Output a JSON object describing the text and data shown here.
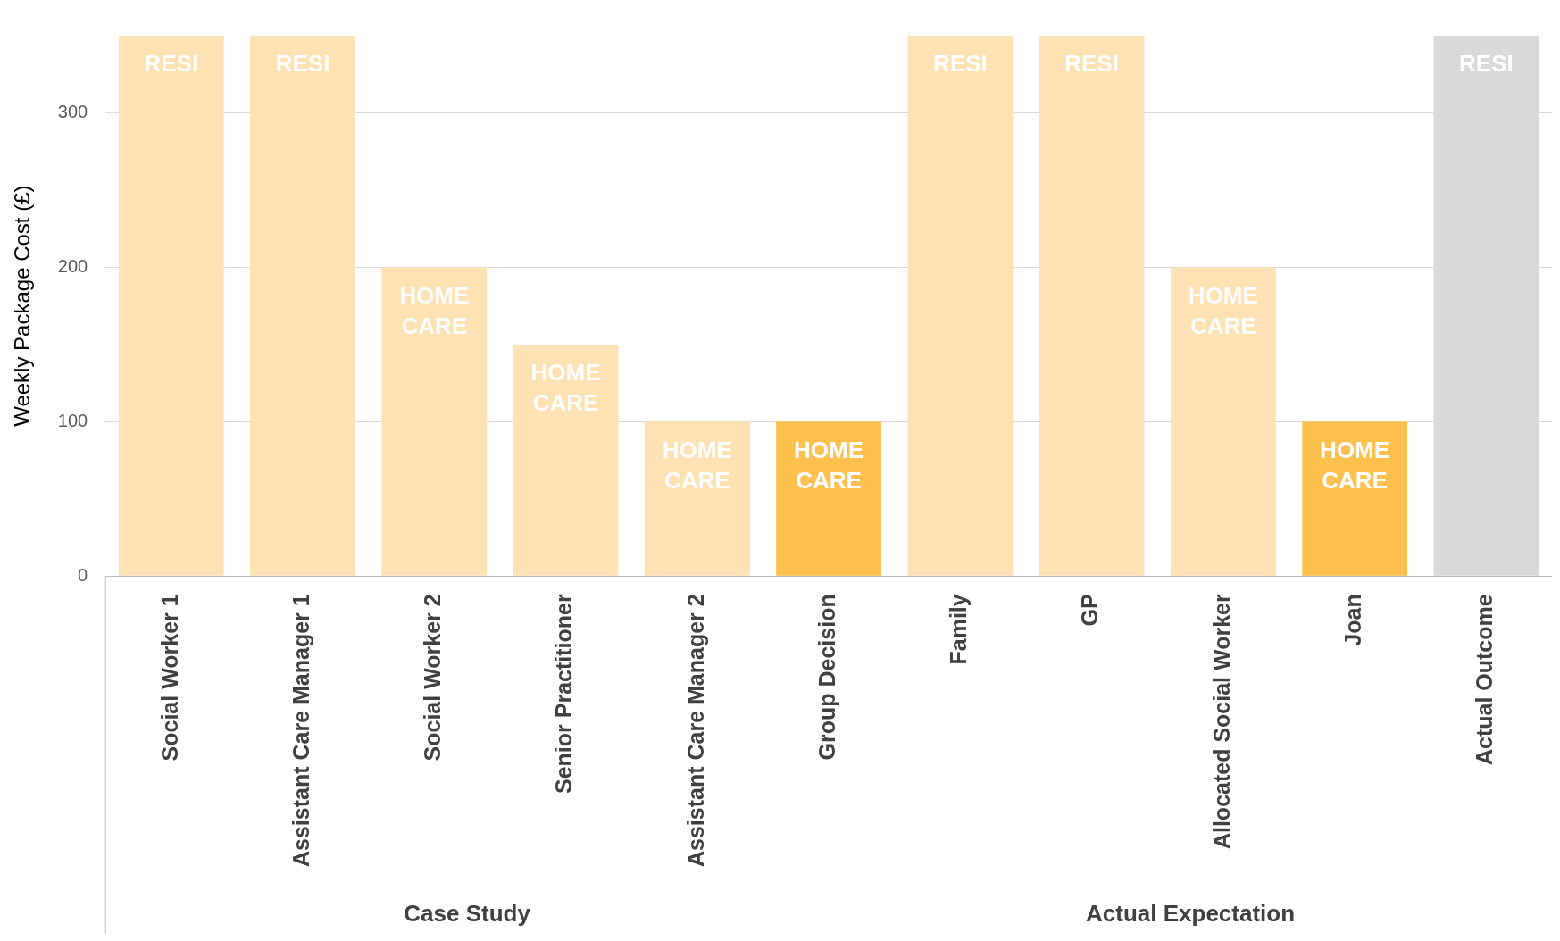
{
  "chart_data": {
    "type": "bar",
    "ylabel": "Weekly Package Cost (£)",
    "categories": [
      "Social Worker 1",
      "Assistant Care Manager 1",
      "Social Worker 2",
      "Senior Practitioner",
      "Assistant Care Manager 2",
      "Group Decision",
      "Family",
      "GP",
      "Allocated Social Worker",
      "Joan",
      "Actual Outcome"
    ],
    "values": [
      350,
      350,
      200,
      150,
      100,
      100,
      350,
      350,
      200,
      100,
      350
    ],
    "colors": [
      "#fee2b3",
      "#fee2b3",
      "#fee2b3",
      "#fee2b3",
      "#fee2b3",
      "#ffc04d",
      "#fee2b3",
      "#fee2b3",
      "#fee2b3",
      "#ffc04d",
      "#d9d9d9"
    ],
    "value_labels": [
      "RESI",
      "RESI",
      "HOME CARE",
      "HOME CARE",
      "HOME CARE",
      "HOME CARE",
      "RESI",
      "RESI",
      "HOME CARE",
      "HOME CARE",
      "RESI"
    ],
    "ylim": [
      0,
      350
    ],
    "yticks": [
      0,
      100,
      200,
      300
    ],
    "grid": "y",
    "legend": false,
    "annotations": [
      "Case Study",
      "Actual Expectation"
    ]
  }
}
